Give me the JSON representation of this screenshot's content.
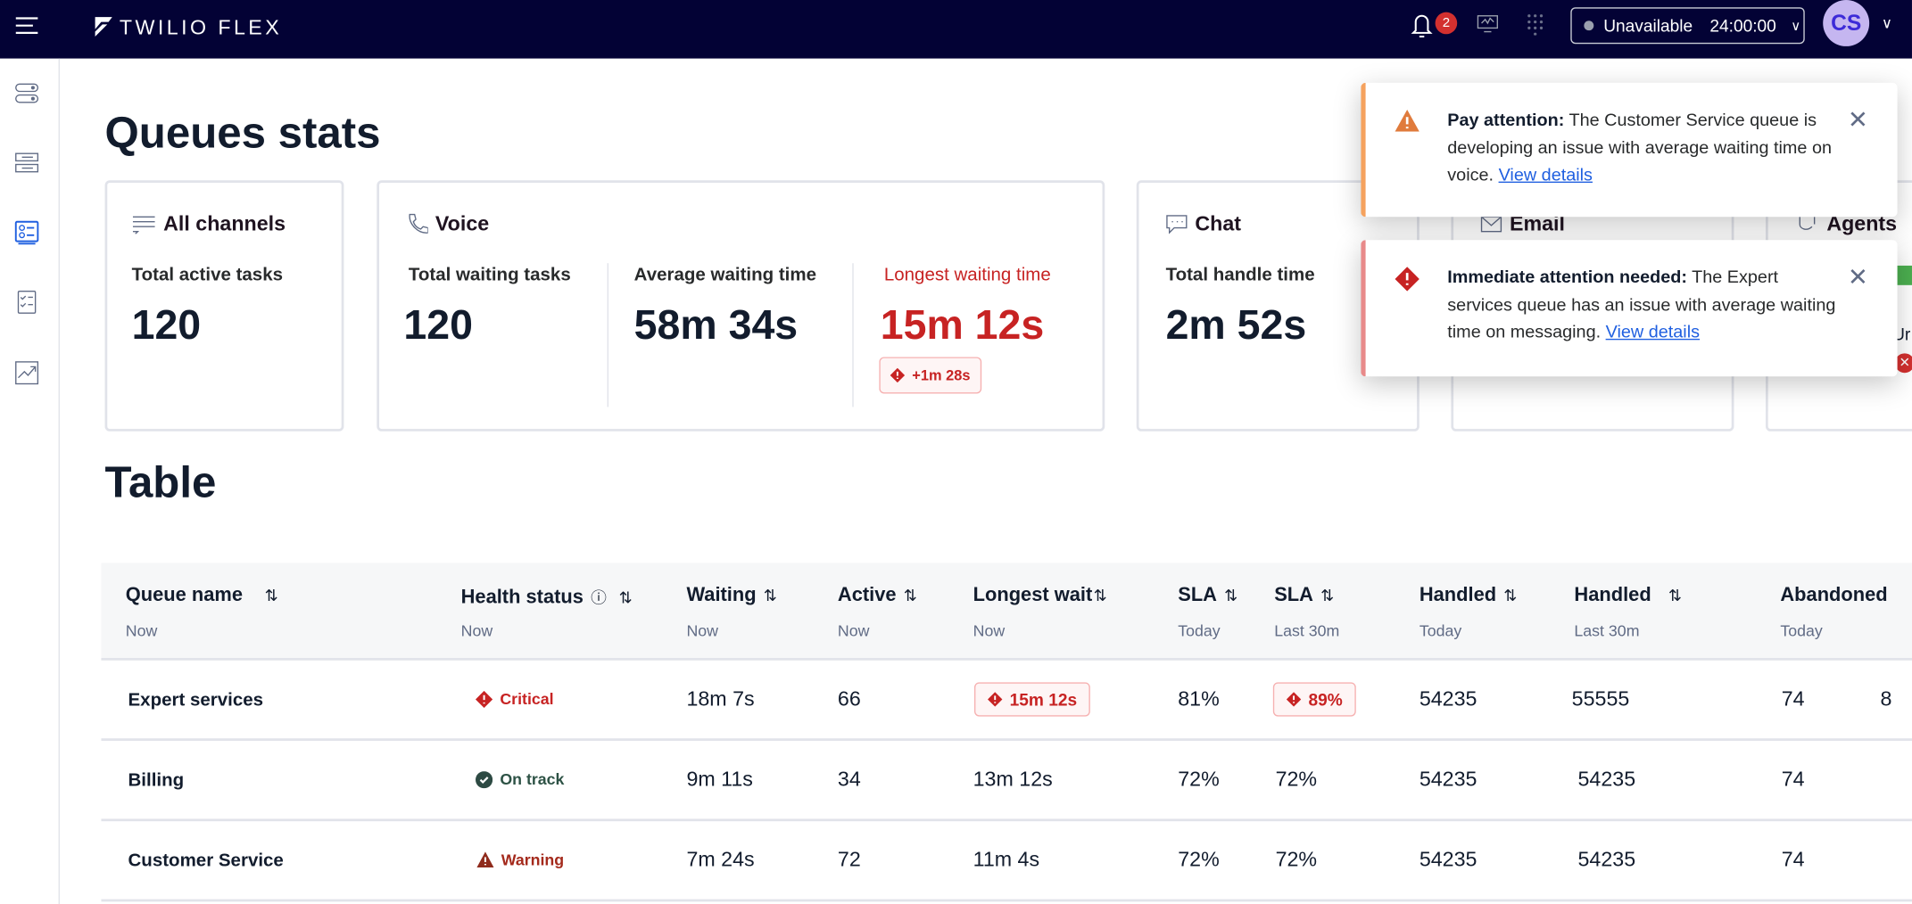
{
  "topbar": {
    "brand": "TWILIO FLEX",
    "notification_count": "2",
    "status": "Unavailable",
    "timer": "24:00:00",
    "avatar_initials": "CS"
  },
  "colors": {
    "topbar": "#030235",
    "accent": "#1f5fe0",
    "critical": "#c72323",
    "warning": "#f5a25e",
    "on_track": "#2d5245"
  },
  "sidebar": {
    "items": [
      {
        "icon": "toggles-icon"
      },
      {
        "icon": "queues-icon"
      },
      {
        "icon": "queue-stats-icon",
        "active": true
      },
      {
        "icon": "checklist-icon"
      },
      {
        "icon": "analytics-icon"
      }
    ]
  },
  "page": {
    "title": "Queues stats",
    "table_title": "Table"
  },
  "cards": {
    "all": {
      "title": "All channels",
      "label": "Total active tasks",
      "value": "120"
    },
    "voice": {
      "title": "Voice",
      "metrics": [
        {
          "label": "Total waiting tasks",
          "value": "120"
        },
        {
          "label": "Average waiting time",
          "value": "58m 34s"
        },
        {
          "label": "Longest waiting time",
          "value": "15m 12s",
          "delta": "+1m 28s"
        }
      ]
    },
    "chat": {
      "title": "Chat",
      "label": "Total handle time",
      "value": "2m 52s"
    },
    "email": {
      "title": "Email"
    },
    "agents": {
      "title": "Agents",
      "partial_label": "Ur"
    }
  },
  "table": {
    "columns": [
      {
        "label": "Queue name",
        "sub": "Now"
      },
      {
        "label": "Health status",
        "sub": "Now"
      },
      {
        "label": "Waiting",
        "sub": "Now"
      },
      {
        "label": "Active",
        "sub": "Now"
      },
      {
        "label": "Longest wait",
        "sub": "Now"
      },
      {
        "label": "SLA",
        "sub": "Today"
      },
      {
        "label": "SLA",
        "sub": "Last 30m"
      },
      {
        "label": "Handled",
        "sub": "Today"
      },
      {
        "label": "Handled",
        "sub": "Last 30m"
      },
      {
        "label": "Abandoned",
        "sub": "Today"
      }
    ],
    "rows": [
      {
        "name": "Expert services",
        "health": "Critical",
        "waiting": "18m 7s",
        "active": "66",
        "longest": "15m 12s",
        "sla_today": "81%",
        "sla_30": "89%",
        "handled_today": "54235",
        "handled_30": "55555",
        "abandoned": "74",
        "extra": "8"
      },
      {
        "name": "Billing",
        "health": "On track",
        "waiting": "9m 11s",
        "active": "34",
        "longest": "13m 12s",
        "sla_today": "72%",
        "sla_30": "72%",
        "handled_today": "54235",
        "handled_30": "54235",
        "abandoned": "74"
      },
      {
        "name": "Customer Service",
        "health": "Warning",
        "waiting": "7m 24s",
        "active": "72",
        "longest": "11m 4s",
        "sla_today": "72%",
        "sla_30": "72%",
        "handled_today": "54235",
        "handled_30": "54235",
        "abandoned": "74"
      }
    ]
  },
  "toasts": [
    {
      "title": "Pay attention:",
      "body": "The Customer Service queue is developing an issue with average waiting time on voice.",
      "link": "View details"
    },
    {
      "title": "Immediate attention needed:",
      "body": "The Expert services queue has an issue with average waiting time on messaging.",
      "link": "View details"
    }
  ]
}
